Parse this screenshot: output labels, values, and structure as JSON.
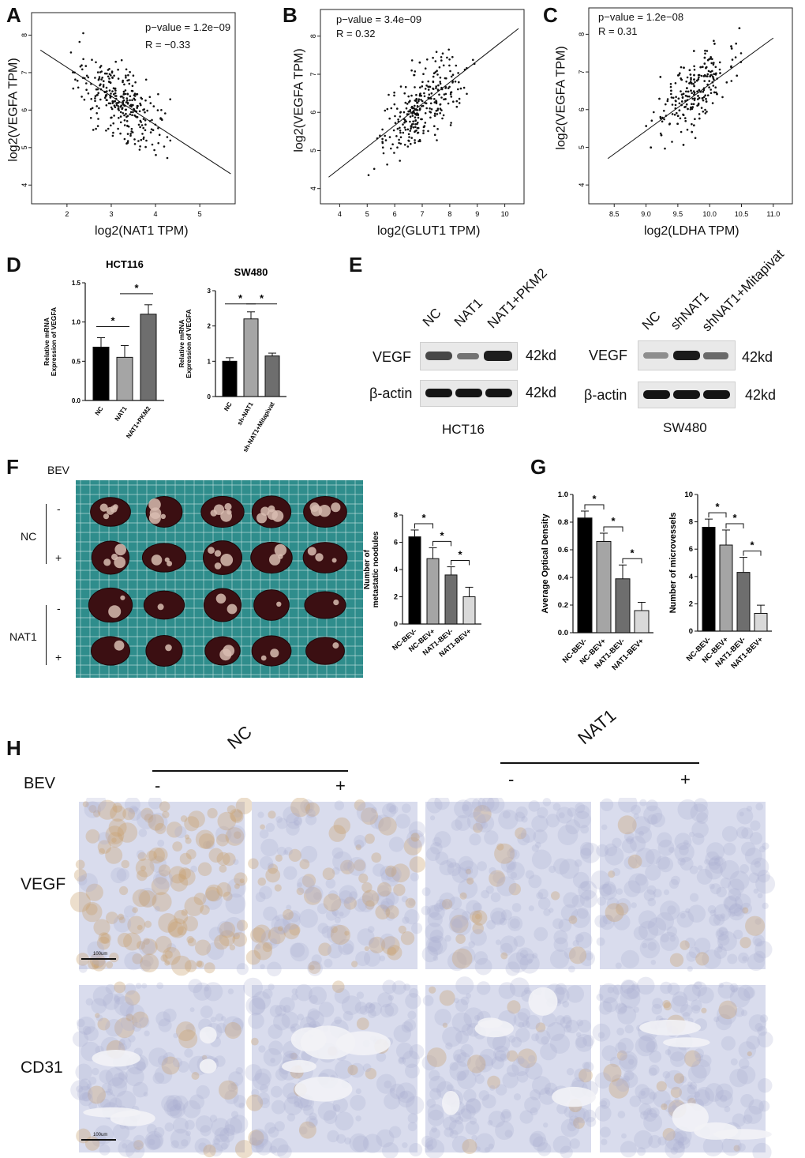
{
  "panel_letters": {
    "a": "A",
    "b": "B",
    "c": "C",
    "d": "D",
    "e": "E",
    "f": "F",
    "g": "G",
    "h": "H"
  },
  "colors": {
    "bar_black": "#000000",
    "bar_gray1": "#a5a5a5",
    "bar_gray2": "#6e6e6e",
    "bar_light": "#d9d9d9",
    "ihc_bg": "#d9dced",
    "ihc_brown": "#c9a16e",
    "grid_board": "#2f8d8c",
    "liver": "#3b0f12"
  },
  "chart_data": [
    {
      "id": "A",
      "type": "scatter",
      "xlabel": "log2(NAT1 TPM)",
      "ylabel": "log2(VEGFA TPM)",
      "xlim": [
        1.2,
        5.8
      ],
      "ylim": [
        3.5,
        8.6
      ],
      "xticks": [
        2,
        3,
        4,
        5
      ],
      "yticks": [
        4,
        5,
        6,
        7,
        8
      ],
      "annotations": [
        "p−value = 1.2e−09",
        "R = −0.33"
      ],
      "fit": {
        "x": [
          1.4,
          5.7
        ],
        "y": [
          7.6,
          4.3
        ]
      },
      "n": 300,
      "center": [
        3.2,
        6.2
      ]
    },
    {
      "id": "B",
      "type": "scatter",
      "xlabel": "log2(GLUT1 TPM)",
      "ylabel": "log2(VEGFA TPM)",
      "xlim": [
        3.3,
        10.7
      ],
      "ylim": [
        3.6,
        8.7
      ],
      "xticks": [
        4,
        5,
        6,
        7,
        8,
        9,
        10
      ],
      "yticks": [
        4,
        5,
        6,
        7,
        8
      ],
      "annotations": [
        "p−value = 3.4e−09",
        "R = 0.32"
      ],
      "fit": {
        "x": [
          3.6,
          10.5
        ],
        "y": [
          4.3,
          8.2
        ]
      },
      "n": 300,
      "center": [
        7,
        6.3
      ]
    },
    {
      "id": "C",
      "type": "scatter",
      "xlabel": "log2(LDHA TPM)",
      "ylabel": "log2(VEGFA TPM)",
      "xlim": [
        8.1,
        11.3
      ],
      "ylim": [
        3.5,
        8.7
      ],
      "xticks": [
        8.5,
        9.0,
        9.5,
        10.0,
        10.5,
        11.0
      ],
      "yticks": [
        4,
        5,
        6,
        7,
        8
      ],
      "annotations": [
        "p−value = 1.2e−08",
        "R = 0.31"
      ],
      "fit": {
        "x": [
          8.4,
          11.0
        ],
        "y": [
          4.7,
          7.9
        ]
      },
      "n": 300,
      "center": [
        9.7,
        6.3
      ]
    },
    {
      "id": "D1",
      "type": "bar",
      "title": "HCT116",
      "ylabel": "Relative mRNA Expression of VEGFA",
      "categories": [
        "NC",
        "NAT1",
        "NAT1+PKM2"
      ],
      "values": [
        0.68,
        0.55,
        1.1
      ],
      "errors": [
        0.12,
        0.15,
        0.12
      ],
      "ylim": [
        0,
        1.5
      ],
      "yticks": [
        "0.0",
        "0.5",
        "1.0",
        "1.5"
      ],
      "sig": [
        [
          0,
          1
        ],
        [
          1,
          2
        ]
      ]
    },
    {
      "id": "D2",
      "type": "bar",
      "title": "SW480",
      "ylabel": "Relative mRNA Expression of VEGFA",
      "categories": [
        "NC",
        "sh-NAT1",
        "sh-NAT1+Mitapivat"
      ],
      "values": [
        1.0,
        2.2,
        1.15
      ],
      "errors": [
        0.1,
        0.2,
        0.08
      ],
      "ylim": [
        0,
        3
      ],
      "yticks": [
        "0",
        "1",
        "2",
        "3"
      ],
      "sig": [
        [
          0,
          1
        ],
        [
          1,
          2
        ]
      ]
    },
    {
      "id": "F",
      "type": "bar",
      "ylabel": "Number of metastatic noodules",
      "categories": [
        "NC-BEV-",
        "NC-BEV+",
        "NAT1-BEV-",
        "NAT1-BEV+"
      ],
      "values": [
        6.4,
        4.8,
        3.6,
        2.0
      ],
      "errors": [
        0.5,
        0.8,
        0.6,
        0.7
      ],
      "ylim": [
        0,
        8
      ],
      "yticks": [
        "0",
        "2",
        "4",
        "6",
        "8"
      ],
      "sig": [
        [
          0,
          1
        ],
        [
          1,
          2
        ],
        [
          2,
          3
        ]
      ]
    },
    {
      "id": "G1",
      "type": "bar",
      "ylabel": "Average Optical Density",
      "categories": [
        "NC-BEV-",
        "NC-BEV+",
        "NAT1-BEV-",
        "NAT1-BEV+"
      ],
      "values": [
        0.83,
        0.66,
        0.39,
        0.16
      ],
      "errors": [
        0.05,
        0.06,
        0.1,
        0.06
      ],
      "ylim": [
        0,
        1.0
      ],
      "yticks": [
        "0.0",
        "0.2",
        "0.4",
        "0.6",
        "0.8",
        "1.0"
      ],
      "sig": [
        [
          0,
          1
        ],
        [
          1,
          2
        ],
        [
          2,
          3
        ]
      ]
    },
    {
      "id": "G2",
      "type": "bar",
      "ylabel": "Number of microvessels",
      "categories": [
        "NC-BEV-",
        "NC-BEV+",
        "NAT1-BEV-",
        "NAT1-BEV+"
      ],
      "values": [
        7.6,
        6.3,
        4.3,
        1.3
      ],
      "errors": [
        0.6,
        1.1,
        1.1,
        0.6
      ],
      "ylim": [
        0,
        10
      ],
      "yticks": [
        "0",
        "2",
        "4",
        "6",
        "8",
        "10"
      ],
      "sig": [
        [
          0,
          1
        ],
        [
          1,
          2
        ],
        [
          2,
          3
        ]
      ]
    }
  ],
  "scatter_labels": {
    "A": {
      "ann1": "p−value = 1.2e−09",
      "ann2": "R = −0.33",
      "x": "log2(NAT1 TPM)",
      "y": "log2(VEGFA TPM)"
    },
    "B": {
      "ann1": "p−value = 3.4e−09",
      "ann2": "R = 0.32",
      "x": "log2(GLUT1 TPM)",
      "y": "log2(VEGFA TPM)"
    },
    "C": {
      "ann1": "p−value = 1.2e−08",
      "ann2": "R = 0.31",
      "x": "log2(LDHA TPM)",
      "y": "log2(VEGFA TPM)"
    }
  },
  "panel_e": {
    "left": {
      "lanes": [
        "NC",
        "NAT1",
        "NAT1+PKM2"
      ],
      "rows": [
        "VEGF",
        "β-actin"
      ],
      "sizes": [
        "42kd",
        "42kd"
      ],
      "cell": "HCT16"
    },
    "right": {
      "lanes": [
        "NC",
        "shNAT1",
        "shNAT1+Mitapivat"
      ],
      "rows": [
        "VEGF",
        "β-actin"
      ],
      "sizes": [
        "42kd",
        "42kd"
      ],
      "cell": "SW480"
    }
  },
  "panel_f": {
    "bev": "BEV",
    "groups": [
      "NC",
      "NAT1"
    ],
    "signs": [
      "-",
      "+",
      "-",
      "+"
    ]
  },
  "panel_h": {
    "groups": [
      "NC",
      "NAT1"
    ],
    "bev": "BEV",
    "signs": [
      "-",
      "+",
      "-",
      "+"
    ],
    "rows": [
      "VEGF",
      "CD31"
    ],
    "scale": "100um"
  }
}
